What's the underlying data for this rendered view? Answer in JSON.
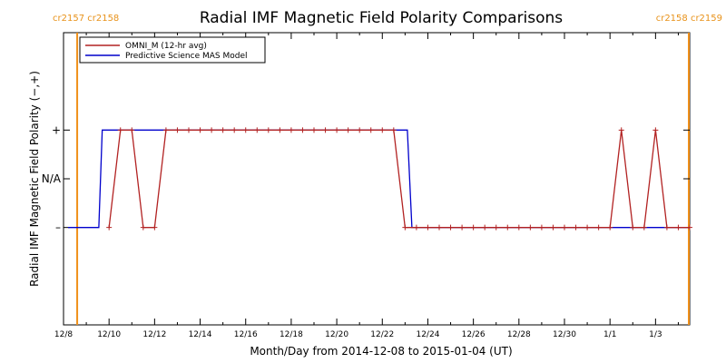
{
  "chart_data": {
    "type": "line",
    "title": "Radial IMF Magnetic Field Polarity Comparisons",
    "xlabel": "Month/Day from 2014-12-08 to 2015-01-04 (UT)",
    "ylabel": "Radial IMF Magnetic Field Polarity (−,+)",
    "xlim": [
      0,
      27.5
    ],
    "ylim": [
      -3,
      3
    ],
    "x_ticks": [
      {
        "x": 0,
        "label": "12/8"
      },
      {
        "x": 2,
        "label": "12/10"
      },
      {
        "x": 4,
        "label": "12/12"
      },
      {
        "x": 6,
        "label": "12/14"
      },
      {
        "x": 8,
        "label": "12/16"
      },
      {
        "x": 10,
        "label": "12/18"
      },
      {
        "x": 12,
        "label": "12/20"
      },
      {
        "x": 14,
        "label": "12/22"
      },
      {
        "x": 16,
        "label": "12/24"
      },
      {
        "x": 18,
        "label": "12/26"
      },
      {
        "x": 20,
        "label": "12/28"
      },
      {
        "x": 22,
        "label": "12/30"
      },
      {
        "x": 24,
        "label": "1/1"
      },
      {
        "x": 26,
        "label": "1/3"
      }
    ],
    "y_ticks": [
      {
        "y": 1,
        "label": "+"
      },
      {
        "y": 0,
        "label": "N/A"
      },
      {
        "y": -1,
        "label": "–"
      }
    ],
    "carrington_markers": [
      {
        "x": 0.6,
        "label": "cr2157 cr2158",
        "side": "left"
      },
      {
        "x": 27.5,
        "label": "cr2158 cr2159",
        "side": "right"
      }
    ],
    "series": [
      {
        "name": "OMNI_M (12-hr avg)",
        "color": "#b22222",
        "markers": true,
        "x": [
          2,
          2.5,
          3,
          3.5,
          4,
          4.5,
          5,
          5.5,
          6,
          6.5,
          7,
          7.5,
          8,
          8.5,
          9,
          9.5,
          10,
          10.5,
          11,
          11.5,
          12,
          12.5,
          13,
          13.5,
          14,
          14.5,
          15,
          15.5,
          16,
          16.5,
          17,
          17.5,
          18,
          18.5,
          19,
          19.5,
          20,
          20.5,
          21,
          21.5,
          22,
          22.5,
          23,
          23.5,
          24,
          24.5,
          25,
          25.5,
          26,
          26.5,
          27,
          27.5
        ],
        "y": [
          -1,
          1,
          1,
          -1,
          -1,
          1,
          1,
          1,
          1,
          1,
          1,
          1,
          1,
          1,
          1,
          1,
          1,
          1,
          1,
          1,
          1,
          1,
          1,
          1,
          1,
          1,
          -1,
          -1,
          -1,
          -1,
          -1,
          -1,
          -1,
          -1,
          -1,
          -1,
          -1,
          -1,
          -1,
          -1,
          -1,
          -1,
          -1,
          -1,
          -1,
          1,
          -1,
          -1,
          1,
          -1,
          -1,
          -1
        ]
      },
      {
        "name": "Predictive Science MAS Model",
        "color": "#0000cc",
        "markers": false,
        "x": [
          0.2,
          1.55,
          1.7,
          15.1,
          15.3,
          27.5
        ],
        "y": [
          -1,
          -1,
          1,
          1,
          -1,
          -1
        ]
      }
    ],
    "legend_position": "top-left"
  }
}
